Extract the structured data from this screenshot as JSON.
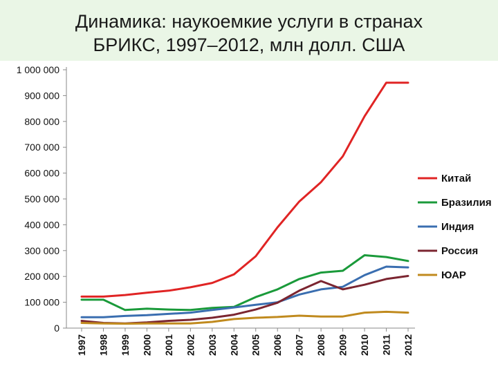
{
  "header": {
    "title_line1": "Динамика: наукоемкие услуги в странах",
    "title_line2": "БРИКС, 1997–2012, млн долл. США"
  },
  "chart_data": {
    "type": "line",
    "title": "Динамика: наукоемкие услуги в странах БРИКС, 1997–2012, млн долл. США",
    "xlabel": "",
    "ylabel": "",
    "x": [
      "1997",
      "1998",
      "1999",
      "2000",
      "2001",
      "2002",
      "2003",
      "2004",
      "2005",
      "2006",
      "2007",
      "2008",
      "2009",
      "2010",
      "2011",
      "2012"
    ],
    "ylim": [
      0,
      1000000
    ],
    "yticks": [
      0,
      100000,
      200000,
      300000,
      400000,
      500000,
      600000,
      700000,
      800000,
      900000,
      1000000
    ],
    "ytick_labels": [
      "0",
      "100 000",
      "200 000",
      "300 000",
      "400 000",
      "500 000",
      "600 000",
      "700 000",
      "800 000",
      "900 000",
      "1 000 000"
    ],
    "grid": false,
    "legend_position": "right",
    "series": [
      {
        "name": "Китай",
        "color": "#e02424",
        "values": [
          122000,
          122000,
          128000,
          137000,
          145000,
          158000,
          175000,
          208000,
          278000,
          390000,
          490000,
          565000,
          665000,
          820000,
          950000,
          950000
        ]
      },
      {
        "name": "Бразилия",
        "color": "#1a9a3a",
        "values": [
          110000,
          110000,
          70000,
          75000,
          72000,
          70000,
          78000,
          82000,
          120000,
          150000,
          190000,
          215000,
          222000,
          282000,
          275000,
          260000
        ]
      },
      {
        "name": "Индия",
        "color": "#3a6eb0",
        "values": [
          42000,
          42000,
          47000,
          50000,
          55000,
          60000,
          70000,
          80000,
          90000,
          100000,
          130000,
          150000,
          160000,
          205000,
          238000,
          235000
        ]
      },
      {
        "name": "Россия",
        "color": "#7b2530",
        "values": [
          28000,
          20000,
          18000,
          22000,
          28000,
          32000,
          40000,
          52000,
          72000,
          98000,
          145000,
          182000,
          150000,
          168000,
          190000,
          202000
        ]
      },
      {
        "name": "ЮАР",
        "color": "#c08a1e",
        "values": [
          20000,
          18000,
          17000,
          18000,
          18000,
          18000,
          24000,
          35000,
          40000,
          43000,
          48000,
          45000,
          45000,
          60000,
          63000,
          60000
        ]
      }
    ]
  }
}
